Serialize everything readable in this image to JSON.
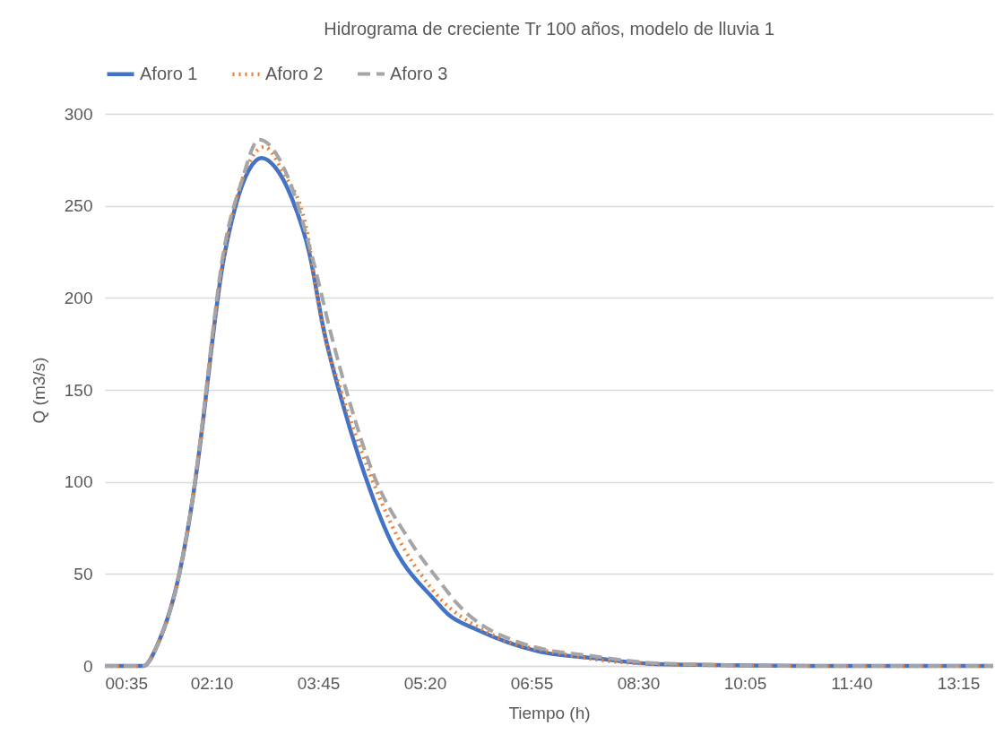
{
  "chart_data": {
    "type": "line",
    "title": "Hidrograma de creciente Tr 100 años, modelo de lluvia 1",
    "xlabel": "Tiempo (h)",
    "ylabel": "Q (m3/s)",
    "xlim": [
      0.5833,
      13.77
    ],
    "ylim": [
      0,
      300
    ],
    "yticks": [
      0,
      50,
      100,
      150,
      200,
      250,
      300
    ],
    "xticks": [
      {
        "value": 0.5833,
        "label": "00:35"
      },
      {
        "value": 2.1667,
        "label": "02:10"
      },
      {
        "value": 3.75,
        "label": "03:45"
      },
      {
        "value": 5.3333,
        "label": "05:20"
      },
      {
        "value": 6.9167,
        "label": "06:55"
      },
      {
        "value": 8.5,
        "label": "08:30"
      },
      {
        "value": 10.0833,
        "label": "10:05"
      },
      {
        "value": 11.6667,
        "label": "11:40"
      },
      {
        "value": 13.25,
        "label": "13:15"
      }
    ],
    "grid": "y",
    "legend": "top",
    "marker": "none",
    "series": [
      {
        "name": "Aforo 1",
        "color": "#4472c4",
        "line_style": "solid",
        "x": [
          0.5833,
          1.0,
          1.155,
          1.382,
          1.688,
          1.9,
          2.05,
          2.18,
          2.31,
          2.51,
          2.73,
          2.91,
          3.11,
          3.36,
          3.62,
          3.83,
          4.11,
          4.44,
          4.88,
          5.01,
          5.45,
          5.68,
          6.12,
          7.01,
          7.9,
          8.78,
          11.0,
          13.77
        ],
        "values": [
          0,
          0,
          0,
          13,
          50,
          94,
          136,
          177,
          213,
          248,
          270,
          276,
          271,
          254,
          224,
          183,
          143,
          104,
          64,
          56,
          37,
          28,
          19.5,
          8,
          4,
          1,
          0,
          0
        ]
      },
      {
        "name": "Aforo 2",
        "color": "#ed7d31",
        "line_style": "dotted",
        "x": [
          0.5833,
          1.0,
          1.155,
          1.382,
          1.688,
          1.9,
          2.05,
          2.18,
          2.31,
          2.51,
          2.73,
          2.95,
          3.23,
          3.56,
          3.8,
          4.11,
          4.44,
          4.93,
          5.37,
          5.49,
          6.25,
          7.45,
          8.78,
          11.0,
          13.77
        ],
        "values": [
          0,
          0,
          0,
          13,
          50,
          94,
          136,
          177,
          214,
          250,
          274,
          282,
          268,
          240,
          187,
          147,
          112,
          70,
          45,
          39.5,
          18.5,
          6,
          1,
          0,
          0
        ]
      },
      {
        "name": "Aforo 3",
        "color": "#a5a5a5",
        "line_style": "dashed",
        "x": [
          0.5833,
          1.0,
          1.155,
          1.382,
          1.688,
          1.9,
          2.05,
          2.18,
          2.31,
          2.62,
          2.87,
          3.34,
          3.67,
          3.95,
          4.22,
          4.55,
          5.11,
          5.55,
          5.81,
          6.74,
          7.9,
          8.78,
          11.0,
          13.77
        ],
        "values": [
          0,
          0,
          0,
          13,
          50,
          95,
          138,
          180,
          217,
          264,
          286,
          262,
          221,
          179,
          143,
          106,
          68,
          46,
          34,
          12.7,
          5,
          1.5,
          0,
          0
        ]
      }
    ]
  }
}
